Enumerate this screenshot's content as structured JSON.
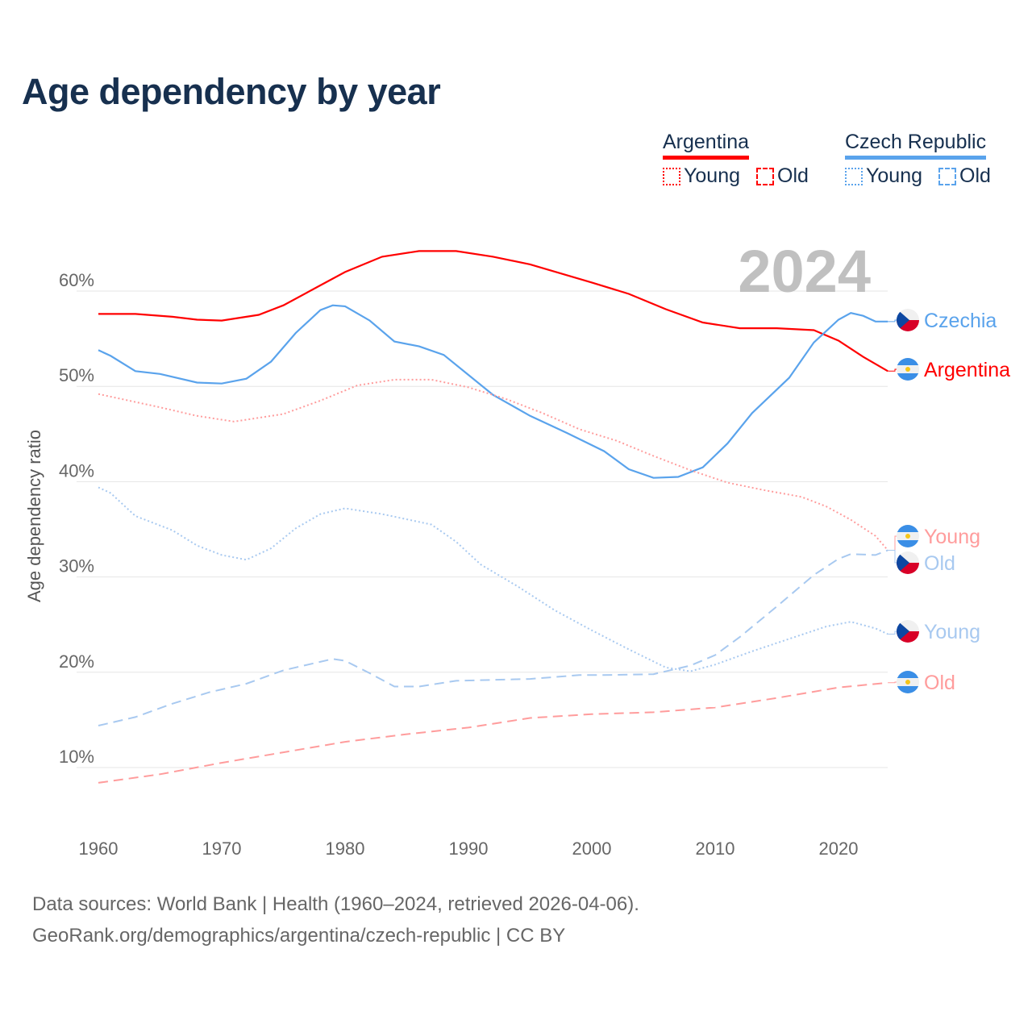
{
  "title": "Age dependency by year",
  "legend": {
    "groups": [
      {
        "name": "Argentina",
        "color": "#ff0000",
        "light": "#ff9c9c",
        "items": [
          {
            "label": "Young",
            "style": "dotted"
          },
          {
            "label": "Old",
            "style": "dashed"
          }
        ]
      },
      {
        "name": "Czech Republic",
        "color": "#5aa3ec",
        "light": "#a8c9f0",
        "items": [
          {
            "label": "Young",
            "style": "dotted"
          },
          {
            "label": "Old",
            "style": "dashed"
          }
        ]
      }
    ]
  },
  "year_label": "2024",
  "footer": {
    "line1": "Data sources: World Bank | Health (1960–2024, retrieved 2026-04-06).",
    "line2": "GeoRank.org/demographics/argentina/czech-republic | CC BY"
  },
  "chart_data": {
    "type": "line",
    "title": "Age dependency by year",
    "xlabel": "",
    "ylabel": "Age dependency ratio",
    "xlim": [
      1960,
      2024
    ],
    "ylim": [
      5,
      67
    ],
    "xticks": [
      1960,
      1970,
      1980,
      1990,
      2000,
      2010,
      2020
    ],
    "xtick_labels": [
      "1960",
      "1970",
      "1980",
      "1990",
      "2000",
      "2010",
      "2020"
    ],
    "yticks": [
      10,
      20,
      30,
      40,
      50,
      60
    ],
    "ytick_labels": [
      "10%",
      "20%",
      "30%",
      "40%",
      "50%",
      "60%"
    ],
    "grid": true,
    "legend_position": "top-right",
    "series": [
      {
        "name": "Argentina",
        "end_label": "Argentina",
        "flag": "argentina",
        "color": "#ff0000",
        "dash": "solid",
        "points": [
          [
            1960,
            57.6
          ],
          [
            1963,
            57.6
          ],
          [
            1966,
            57.3
          ],
          [
            1968,
            57.0
          ],
          [
            1970,
            56.9
          ],
          [
            1973,
            57.5
          ],
          [
            1975,
            58.5
          ],
          [
            1978,
            60.6
          ],
          [
            1980,
            62.0
          ],
          [
            1983,
            63.6
          ],
          [
            1986,
            64.2
          ],
          [
            1989,
            64.2
          ],
          [
            1992,
            63.6
          ],
          [
            1995,
            62.8
          ],
          [
            2000,
            60.9
          ],
          [
            2003,
            59.7
          ],
          [
            2006,
            58.1
          ],
          [
            2009,
            56.7
          ],
          [
            2012,
            56.1
          ],
          [
            2015,
            56.1
          ],
          [
            2018,
            55.9
          ],
          [
            2020,
            54.8
          ],
          [
            2022,
            53.1
          ],
          [
            2024,
            51.6
          ]
        ]
      },
      {
        "name": "Czech Republic",
        "end_label": "Czechia",
        "flag": "czechia",
        "color": "#5aa3ec",
        "dash": "solid",
        "points": [
          [
            1960,
            53.8
          ],
          [
            1961,
            53.2
          ],
          [
            1963,
            51.6
          ],
          [
            1965,
            51.3
          ],
          [
            1968,
            50.4
          ],
          [
            1970,
            50.3
          ],
          [
            1972,
            50.8
          ],
          [
            1974,
            52.6
          ],
          [
            1976,
            55.6
          ],
          [
            1978,
            58.0
          ],
          [
            1979,
            58.5
          ],
          [
            1980,
            58.4
          ],
          [
            1982,
            56.9
          ],
          [
            1984,
            54.7
          ],
          [
            1986,
            54.2
          ],
          [
            1988,
            53.3
          ],
          [
            1990,
            51.2
          ],
          [
            1992,
            49.1
          ],
          [
            1995,
            46.9
          ],
          [
            1998,
            45.1
          ],
          [
            2001,
            43.2
          ],
          [
            2003,
            41.3
          ],
          [
            2005,
            40.4
          ],
          [
            2007,
            40.5
          ],
          [
            2009,
            41.5
          ],
          [
            2011,
            44.0
          ],
          [
            2013,
            47.2
          ],
          [
            2016,
            50.9
          ],
          [
            2018,
            54.6
          ],
          [
            2020,
            57.0
          ],
          [
            2021,
            57.7
          ],
          [
            2022,
            57.4
          ],
          [
            2023,
            56.8
          ],
          [
            2024,
            56.8
          ]
        ]
      },
      {
        "name": "Argentina Young",
        "end_label": "Young",
        "flag": "argentina",
        "color": "#ff9c9c",
        "dash": "dotted",
        "points": [
          [
            1960,
            49.2
          ],
          [
            1965,
            47.8
          ],
          [
            1968,
            46.9
          ],
          [
            1971,
            46.3
          ],
          [
            1975,
            47.1
          ],
          [
            1978,
            48.5
          ],
          [
            1981,
            50.1
          ],
          [
            1984,
            50.7
          ],
          [
            1987,
            50.7
          ],
          [
            1990,
            49.9
          ],
          [
            1993,
            48.7
          ],
          [
            1996,
            47.2
          ],
          [
            1999,
            45.5
          ],
          [
            2002,
            44.3
          ],
          [
            2005,
            42.7
          ],
          [
            2008,
            41.2
          ],
          [
            2011,
            39.9
          ],
          [
            2014,
            39.1
          ],
          [
            2017,
            38.4
          ],
          [
            2019,
            37.4
          ],
          [
            2021,
            36.0
          ],
          [
            2023,
            34.3
          ],
          [
            2024,
            32.8
          ]
        ]
      },
      {
        "name": "Czech Republic Old",
        "end_label": "Old",
        "flag": "czechia",
        "color": "#a8c9f0",
        "dash": "dashed",
        "points": [
          [
            1960,
            14.4
          ],
          [
            1963,
            15.3
          ],
          [
            1966,
            16.7
          ],
          [
            1969,
            17.9
          ],
          [
            1972,
            18.8
          ],
          [
            1975,
            20.2
          ],
          [
            1977,
            20.8
          ],
          [
            1979,
            21.4
          ],
          [
            1980,
            21.2
          ],
          [
            1982,
            19.9
          ],
          [
            1984,
            18.5
          ],
          [
            1986,
            18.5
          ],
          [
            1989,
            19.1
          ],
          [
            1995,
            19.3
          ],
          [
            1999,
            19.7
          ],
          [
            2001,
            19.7
          ],
          [
            2005,
            19.8
          ],
          [
            2008,
            20.7
          ],
          [
            2010,
            21.8
          ],
          [
            2012,
            23.7
          ],
          [
            2015,
            26.9
          ],
          [
            2018,
            30.2
          ],
          [
            2020,
            31.9
          ],
          [
            2021,
            32.4
          ],
          [
            2023,
            32.3
          ],
          [
            2024,
            32.8
          ]
        ]
      },
      {
        "name": "Czech Republic Young",
        "end_label": "Young",
        "flag": "czechia",
        "color": "#a8c9f0",
        "dash": "dotted",
        "points": [
          [
            1960,
            39.4
          ],
          [
            1961,
            38.8
          ],
          [
            1963,
            36.4
          ],
          [
            1966,
            34.9
          ],
          [
            1968,
            33.3
          ],
          [
            1970,
            32.3
          ],
          [
            1972,
            31.8
          ],
          [
            1974,
            33.0
          ],
          [
            1976,
            35.1
          ],
          [
            1978,
            36.6
          ],
          [
            1980,
            37.2
          ],
          [
            1983,
            36.6
          ],
          [
            1987,
            35.5
          ],
          [
            1989,
            33.7
          ],
          [
            1991,
            31.3
          ],
          [
            1994,
            29.0
          ],
          [
            1997,
            26.5
          ],
          [
            2000,
            24.4
          ],
          [
            2003,
            22.4
          ],
          [
            2006,
            20.5
          ],
          [
            2008,
            20.1
          ],
          [
            2010,
            20.8
          ],
          [
            2013,
            22.2
          ],
          [
            2016,
            23.5
          ],
          [
            2019,
            24.8
          ],
          [
            2021,
            25.3
          ],
          [
            2023,
            24.6
          ],
          [
            2024,
            24.0
          ]
        ]
      },
      {
        "name": "Argentina Old",
        "end_label": "Old",
        "flag": "argentina",
        "color": "#ff9c9c",
        "dash": "dashed",
        "points": [
          [
            1960,
            8.4
          ],
          [
            1965,
            9.3
          ],
          [
            1970,
            10.5
          ],
          [
            1975,
            11.6
          ],
          [
            1980,
            12.7
          ],
          [
            1985,
            13.5
          ],
          [
            1990,
            14.2
          ],
          [
            1995,
            15.2
          ],
          [
            2000,
            15.6
          ],
          [
            2005,
            15.8
          ],
          [
            2010,
            16.3
          ],
          [
            2015,
            17.3
          ],
          [
            2020,
            18.4
          ],
          [
            2024,
            18.9
          ]
        ]
      }
    ]
  }
}
